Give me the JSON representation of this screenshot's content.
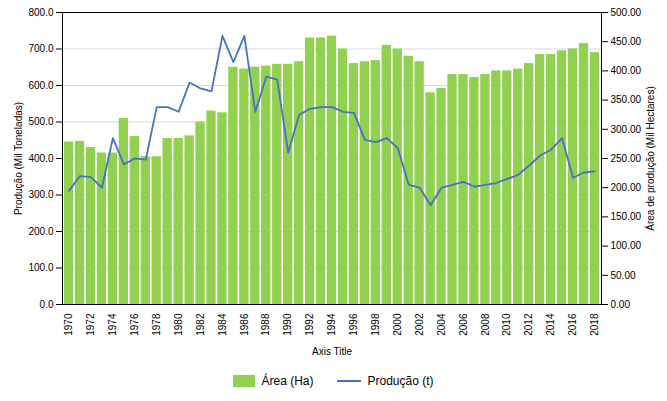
{
  "chart_data": {
    "type": "bar",
    "xlabel": "Axis Title",
    "ylabel": "Produção (Mil Toneladas)",
    "y2label": "Área de produção (Mil Hectares)",
    "x": [
      1970,
      1971,
      1972,
      1973,
      1974,
      1975,
      1976,
      1977,
      1978,
      1979,
      1980,
      1981,
      1982,
      1983,
      1984,
      1985,
      1986,
      1987,
      1988,
      1989,
      1990,
      1991,
      1992,
      1993,
      1994,
      1995,
      1996,
      1997,
      1998,
      1999,
      2000,
      2001,
      2002,
      2003,
      2004,
      2005,
      2006,
      2007,
      2008,
      2009,
      2010,
      2011,
      2012,
      2013,
      2014,
      2015,
      2016,
      2017,
      2018
    ],
    "xlim": [
      1969.4,
      2018.6
    ],
    "xticks": [
      1970,
      1972,
      1974,
      1976,
      1978,
      1980,
      1982,
      1984,
      1986,
      1988,
      1990,
      1992,
      1994,
      1996,
      1998,
      2000,
      2002,
      2004,
      2006,
      2008,
      2010,
      2012,
      2014,
      2016,
      2018
    ],
    "ylim": [
      0,
      800
    ],
    "yticks": [
      {
        "value": 0,
        "label": "0.0"
      },
      {
        "value": 100,
        "label": "100.0"
      },
      {
        "value": 200,
        "label": "200.0"
      },
      {
        "value": 300,
        "label": "300.0"
      },
      {
        "value": 400,
        "label": "400.0"
      },
      {
        "value": 500,
        "label": "500.0"
      },
      {
        "value": 600,
        "label": "600.0"
      },
      {
        "value": 700,
        "label": "700.0"
      },
      {
        "value": 800,
        "label": "800.0"
      }
    ],
    "y2lim": [
      0,
      500
    ],
    "y2ticks": [
      {
        "value": 0,
        "label": "0.00"
      },
      {
        "value": 50,
        "label": "50.00"
      },
      {
        "value": 100,
        "label": "100.00"
      },
      {
        "value": 150,
        "label": "150.00"
      },
      {
        "value": 200,
        "label": "200.00"
      },
      {
        "value": 250,
        "label": "250.00"
      },
      {
        "value": 300,
        "label": "300.00"
      },
      {
        "value": 350,
        "label": "350.00"
      },
      {
        "value": 400,
        "label": "400.00"
      },
      {
        "value": 450,
        "label": "450.00"
      },
      {
        "value": 500,
        "label": "500.00"
      }
    ],
    "grid": true,
    "legend": "bottom",
    "series": [
      {
        "name": "Área (Ha)",
        "type": "bar",
        "color": "#92d050",
        "values": [
          445,
          447,
          430,
          415,
          415,
          510,
          460,
          405,
          405,
          455,
          455,
          462,
          500,
          530,
          525,
          650,
          645,
          650,
          653,
          658,
          658,
          665,
          730,
          730,
          735,
          700,
          660,
          665,
          668,
          710,
          700,
          680,
          665,
          580,
          592,
          630,
          630,
          622,
          630,
          640,
          640,
          645,
          660,
          685,
          685,
          695,
          700,
          715,
          690
        ]
      },
      {
        "name": "Produção (t)",
        "type": "line",
        "axis": "y2",
        "color": "#4472c4",
        "values": [
          195,
          220,
          218,
          200,
          285,
          240,
          250,
          248,
          338,
          338,
          330,
          380,
          370,
          365,
          460,
          415,
          460,
          330,
          390,
          385,
          260,
          325,
          335,
          338,
          338,
          330,
          328,
          282,
          278,
          285,
          268,
          205,
          200,
          170,
          200,
          205,
          210,
          202,
          205,
          208,
          215,
          222,
          238,
          255,
          265,
          285,
          217,
          226,
          228
        ]
      }
    ]
  }
}
